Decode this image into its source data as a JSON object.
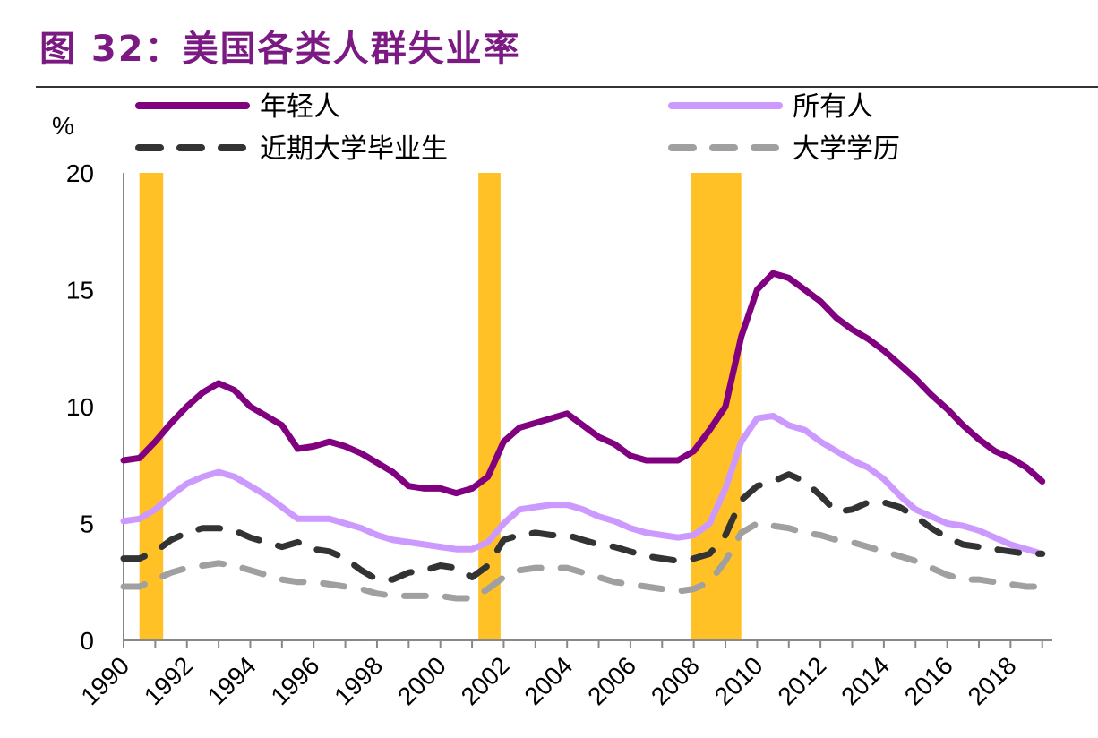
{
  "title": "图 32：美国各类人群失业率",
  "chart_data": {
    "type": "line",
    "title": "图 32：美国各类人群失业率",
    "ylabel": "%",
    "xlabel": "",
    "ylim": [
      0,
      20
    ],
    "xlim": [
      1990,
      2019.3
    ],
    "yticks": [
      0,
      5,
      10,
      15,
      20
    ],
    "xticks": [
      1990,
      1992,
      1994,
      1996,
      1998,
      2000,
      2002,
      2004,
      2006,
      2008,
      2010,
      2012,
      2014,
      2016,
      2018
    ],
    "grid": false,
    "legend_placement": "top",
    "recessions": [
      [
        1990.5,
        1991.25
      ],
      [
        2001.2,
        2001.9
      ],
      [
        2007.9,
        2009.5
      ]
    ],
    "recession_color": "#FFC125",
    "x": [
      1990,
      1990.5,
      1991,
      1991.5,
      1992,
      1992.5,
      1993,
      1993.5,
      1994,
      1994.5,
      1995,
      1995.5,
      1996,
      1996.5,
      1997,
      1997.5,
      1998,
      1998.5,
      1999,
      1999.5,
      2000,
      2000.5,
      2001,
      2001.5,
      2002,
      2002.5,
      2003,
      2003.5,
      2004,
      2004.5,
      2005,
      2005.5,
      2006,
      2006.5,
      2007,
      2007.5,
      2008,
      2008.5,
      2009,
      2009.5,
      2010,
      2010.5,
      2011,
      2011.5,
      2012,
      2012.5,
      2013,
      2013.5,
      2014,
      2014.5,
      2015,
      2015.5,
      2016,
      2016.5,
      2017,
      2017.5,
      2018,
      2018.5,
      2019
    ],
    "series": [
      {
        "name": "年轻人",
        "color": "#800080",
        "style": "solid",
        "values": [
          7.7,
          7.8,
          8.5,
          9.3,
          10.0,
          10.6,
          11.0,
          10.7,
          10.0,
          9.6,
          9.2,
          8.2,
          8.3,
          8.5,
          8.3,
          8.0,
          7.6,
          7.2,
          6.6,
          6.5,
          6.5,
          6.3,
          6.5,
          7.0,
          8.5,
          9.1,
          9.3,
          9.5,
          9.7,
          9.2,
          8.7,
          8.4,
          7.9,
          7.7,
          7.7,
          7.7,
          8.1,
          9.0,
          10.0,
          13.0,
          15.0,
          15.7,
          15.5,
          15.0,
          14.5,
          13.8,
          13.3,
          12.9,
          12.4,
          11.8,
          11.2,
          10.5,
          9.9,
          9.2,
          8.6,
          8.1,
          7.8,
          7.4,
          6.8
        ]
      },
      {
        "name": "所有人",
        "color": "#CC99FF",
        "style": "solid",
        "values": [
          5.1,
          5.2,
          5.6,
          6.2,
          6.7,
          7.0,
          7.2,
          7.0,
          6.6,
          6.2,
          5.7,
          5.2,
          5.2,
          5.2,
          5.0,
          4.8,
          4.5,
          4.3,
          4.2,
          4.1,
          4.0,
          3.9,
          3.9,
          4.2,
          5.0,
          5.6,
          5.7,
          5.8,
          5.8,
          5.6,
          5.3,
          5.1,
          4.8,
          4.6,
          4.5,
          4.4,
          4.5,
          5.0,
          6.5,
          8.5,
          9.5,
          9.6,
          9.2,
          9.0,
          8.5,
          8.1,
          7.7,
          7.4,
          6.9,
          6.2,
          5.6,
          5.3,
          5.0,
          4.9,
          4.7,
          4.4,
          4.1,
          3.9,
          3.7
        ]
      },
      {
        "name": "近期大学毕业生",
        "color": "#333333",
        "style": "dashed",
        "values": [
          3.5,
          3.5,
          3.8,
          4.3,
          4.6,
          4.8,
          4.8,
          4.7,
          4.4,
          4.2,
          4.0,
          4.2,
          3.9,
          3.8,
          3.5,
          3.0,
          2.6,
          2.6,
          2.9,
          3.0,
          3.2,
          3.1,
          2.7,
          3.2,
          4.3,
          4.5,
          4.6,
          4.5,
          4.5,
          4.3,
          4.1,
          4.0,
          3.8,
          3.6,
          3.5,
          3.4,
          3.5,
          3.7,
          4.5,
          6.0,
          6.6,
          6.8,
          7.1,
          6.8,
          6.2,
          5.5,
          5.6,
          5.9,
          5.9,
          5.7,
          5.3,
          4.8,
          4.4,
          4.1,
          4.0,
          3.9,
          3.8,
          3.7,
          3.7
        ]
      },
      {
        "name": "大学学历",
        "color": "#A0A0A0",
        "style": "dashed",
        "values": [
          2.3,
          2.3,
          2.6,
          2.9,
          3.1,
          3.2,
          3.3,
          3.2,
          3.0,
          2.8,
          2.6,
          2.5,
          2.5,
          2.4,
          2.3,
          2.2,
          2.0,
          1.9,
          1.9,
          1.9,
          1.9,
          1.8,
          1.8,
          2.2,
          2.7,
          3.0,
          3.1,
          3.1,
          3.1,
          2.9,
          2.7,
          2.5,
          2.4,
          2.3,
          2.2,
          2.1,
          2.2,
          2.5,
          3.4,
          4.6,
          5.0,
          4.9,
          4.8,
          4.6,
          4.5,
          4.3,
          4.2,
          4.0,
          3.8,
          3.6,
          3.4,
          3.1,
          2.8,
          2.6,
          2.6,
          2.5,
          2.4,
          2.3,
          2.3
        ]
      }
    ]
  }
}
